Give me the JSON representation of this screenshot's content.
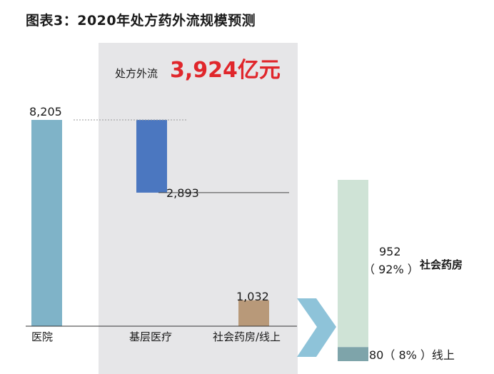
{
  "title": "图表3：2020年处方药外流规模预测",
  "colors": {
    "hospital": "#7fb3c8",
    "primary_care": "#4b77c0",
    "pharmacy_online": "#b89979",
    "pharmacy_share": "#cfe3d6",
    "online_share": "#7ea4aa",
    "highlight_bg": "#e6e6e8",
    "arrow": "#8ec3d9",
    "headline_red": "#e0262b"
  },
  "headline": {
    "prefix": "处方外流",
    "value": "3,924亿元"
  },
  "chart_data": {
    "type": "bar",
    "subtype": "waterfall",
    "categories": [
      "医院",
      "基层医疗",
      "社会药房/线上"
    ],
    "values": [
      8205,
      2893,
      1032
    ],
    "value_labels": [
      "8,205",
      "2,893",
      "1,032"
    ],
    "grid": false,
    "breakdown": {
      "of_category": "社会药房/线上",
      "segments": [
        {
          "name": "社会药房",
          "value": 952,
          "label_value": "952",
          "label_pct": "（ 92% ）"
        },
        {
          "name": "线上",
          "value": 80,
          "label": "80（ 8% ）线上"
        }
      ]
    }
  }
}
